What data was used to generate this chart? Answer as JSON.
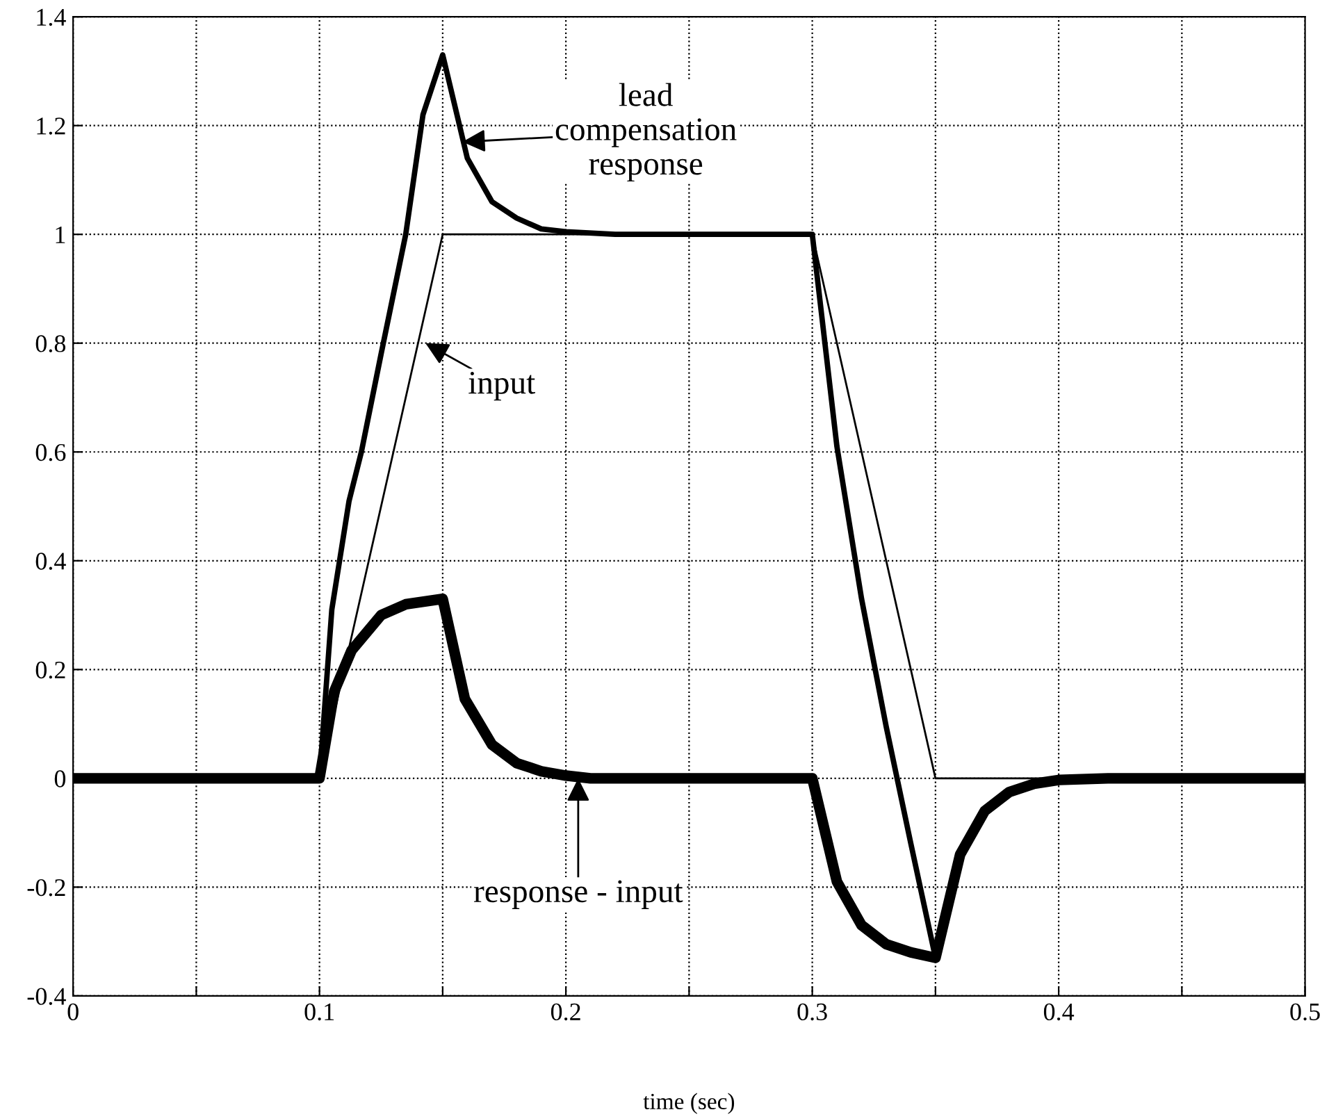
{
  "chart_data": {
    "type": "line",
    "xlabel": "time (sec)",
    "xlim": [
      0,
      0.5
    ],
    "ylim": [
      -0.4,
      1.4
    ],
    "xticks": [
      0,
      {
        "value": 0.05,
        "label": null
      },
      0.1,
      {
        "value": 0.15,
        "label": null
      },
      0.2,
      {
        "value": 0.25,
        "label": null
      },
      0.3,
      {
        "value": 0.35,
        "label": null
      },
      0.4,
      {
        "value": 0.45,
        "label": null
      },
      0.5
    ],
    "yticks": [
      -0.4,
      -0.2,
      0,
      0.2,
      0.4,
      0.6,
      0.8,
      1,
      1.2,
      1.4
    ],
    "grid": true,
    "series": [
      {
        "color": "#000000",
        "line_style": "solid",
        "x": [
          0,
          0.1,
          0.15,
          0.3,
          0.35,
          0.5
        ],
        "values": [
          0,
          0,
          1,
          1,
          0,
          0
        ]
      },
      {
        "color": "#000000",
        "line_style": "solid",
        "x": [
          0,
          0.1,
          0.105,
          0.112,
          0.117,
          0.125,
          0.135,
          0.142,
          0.15,
          0.16,
          0.17,
          0.18,
          0.19,
          0.2,
          0.22,
          0.3,
          0.31,
          0.32,
          0.33,
          0.34,
          0.35,
          0.36,
          0.37,
          0.38,
          0.39,
          0.4,
          0.42,
          0.5
        ],
        "values": [
          0,
          0,
          0.31,
          0.51,
          0.6,
          0.78,
          1.0,
          1.22,
          1.33,
          1.14,
          1.06,
          1.03,
          1.01,
          1.005,
          1,
          1,
          0.61,
          0.33,
          0.095,
          -0.12,
          -0.33,
          -0.14,
          -0.06,
          -0.025,
          -0.01,
          -0.003,
          0,
          0
        ]
      },
      {
        "color": "#000000",
        "line_style": "solid",
        "x": [
          0,
          0.1,
          0.106,
          0.113,
          0.125,
          0.135,
          0.15,
          0.159,
          0.17,
          0.18,
          0.19,
          0.2,
          0.21,
          0.3,
          0.31,
          0.32,
          0.33,
          0.34,
          0.35,
          0.36,
          0.37,
          0.38,
          0.39,
          0.4,
          0.42,
          0.5
        ],
        "values": [
          0,
          0,
          0.16,
          0.235,
          0.3,
          0.32,
          0.33,
          0.146,
          0.062,
          0.028,
          0.013,
          0.005,
          0,
          0,
          -0.19,
          -0.27,
          -0.305,
          -0.32,
          -0.33,
          -0.14,
          -0.06,
          -0.025,
          -0.01,
          -0.003,
          0,
          0
        ]
      }
    ],
    "annotations": [
      {
        "text": "lead\ncompensation\nresponse",
        "x": 0.158,
        "y": 1.17
      },
      {
        "text": "input",
        "x": 0.143,
        "y": 0.8
      },
      {
        "text": "response - input",
        "x": 0.205,
        "y": 0.0
      }
    ]
  }
}
